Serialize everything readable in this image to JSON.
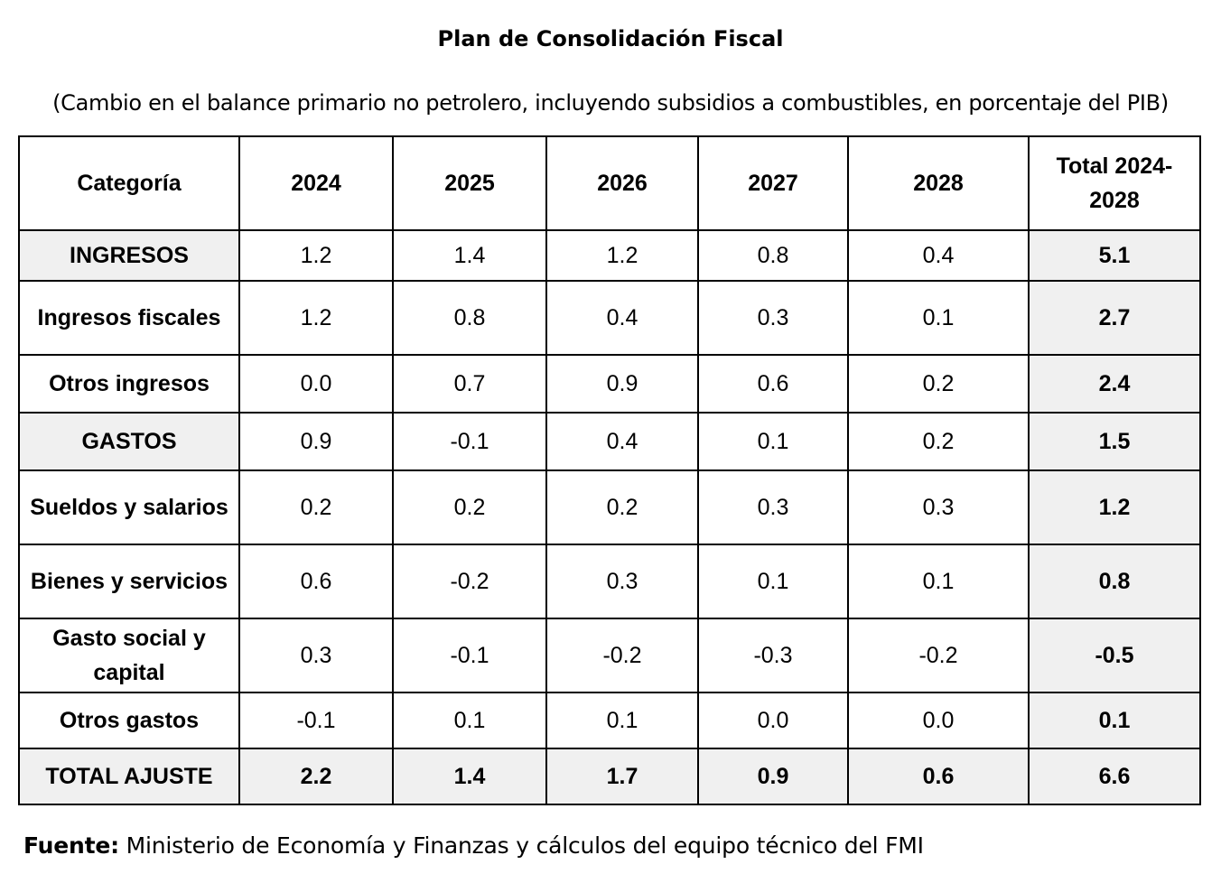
{
  "title": "Plan de Consolidación Fiscal",
  "subtitle": "(Cambio en el balance primario no petrolero, incluyendo subsidios a combustibles, en porcentaje del PIB)",
  "table": {
    "headers": [
      "Categoría",
      "2024",
      "2025",
      "2026",
      "2027",
      "2028",
      "Total 2024-2028"
    ],
    "rows": [
      {
        "category": "INGRESOS",
        "values": [
          "1.2",
          "1.4",
          "1.2",
          "0.8",
          "0.4"
        ],
        "total": "5.1"
      },
      {
        "category": "Ingresos fiscales",
        "values": [
          "1.2",
          "0.8",
          "0.4",
          "0.3",
          "0.1"
        ],
        "total": "2.7"
      },
      {
        "category": "Otros ingresos",
        "values": [
          "0.0",
          "0.7",
          "0.9",
          "0.6",
          "0.2"
        ],
        "total": "2.4"
      },
      {
        "category": "GASTOS",
        "values": [
          "0.9",
          "-0.1",
          "0.4",
          "0.1",
          "0.2"
        ],
        "total": "1.5"
      },
      {
        "category": "Sueldos y salarios",
        "values": [
          "0.2",
          "0.2",
          "0.2",
          "0.3",
          "0.3"
        ],
        "total": "1.2"
      },
      {
        "category": "Bienes y servicios",
        "values": [
          "0.6",
          "-0.2",
          "0.3",
          "0.1",
          "0.1"
        ],
        "total": "0.8"
      },
      {
        "category": "Gasto social y capital",
        "values": [
          "0.3",
          "-0.1",
          "-0.2",
          "-0.3",
          "-0.2"
        ],
        "total": "-0.5"
      },
      {
        "category": "Otros gastos",
        "values": [
          "-0.1",
          "0.1",
          "0.1",
          "0.0",
          "0.0"
        ],
        "total": "0.1"
      },
      {
        "category": "TOTAL AJUSTE",
        "values": [
          "2.2",
          "1.4",
          "1.7",
          "0.9",
          "0.6"
        ],
        "total": "6.6"
      }
    ]
  },
  "source": {
    "label": "Fuente:",
    "text": " Ministerio de Economía y Finanzas y cálculos del equipo técnico del FMI"
  },
  "colors": {
    "shaded_cell": "#f0f0f0",
    "border": "#000000"
  }
}
